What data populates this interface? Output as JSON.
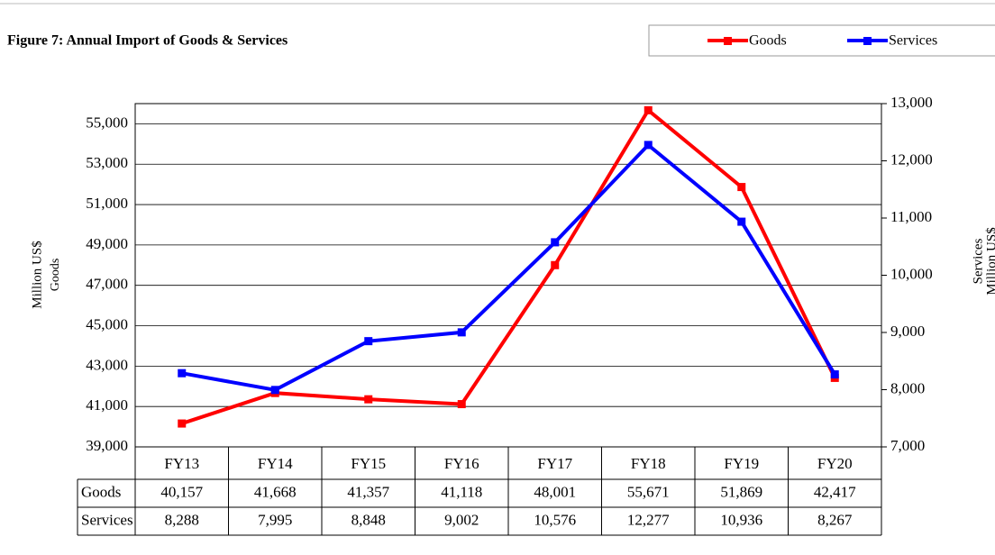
{
  "chart_data": {
    "type": "line",
    "title": "Figure 7: Annual Import of Goods & Services",
    "y_label": "Million US$",
    "y_sublabel": "Goods",
    "y2_label": "Services",
    "y2_sublabel": "Million US$",
    "categories": [
      "FY13",
      "FY14",
      "FY15",
      "FY16",
      "FY17",
      "FY18",
      "FY19",
      "FY20"
    ],
    "series": [
      {
        "name": "Goods",
        "color": "#ff0000",
        "values": [
          40157,
          41668,
          41357,
          41118,
          48001,
          55671,
          51869,
          42417
        ],
        "value_labels": [
          "40,157",
          "41,668",
          "41,357",
          "41,118",
          "48,001",
          "55,671",
          "51,869",
          "42,417"
        ]
      },
      {
        "name": "Services",
        "color": "#0000ff",
        "axis": "y2",
        "values": [
          8288,
          7995,
          8848,
          9002,
          10576,
          12277,
          10936,
          8267
        ],
        "value_labels": [
          "8,288",
          "7,995",
          "8,848",
          "9,002",
          "10,576",
          "12,277",
          "10,936",
          "8,267"
        ]
      }
    ],
    "ylim": [
      39000,
      56000
    ],
    "yticks": [
      {
        "value": 39000,
        "label": "39,000"
      },
      {
        "value": 41000,
        "label": "41,000"
      },
      {
        "value": 43000,
        "label": "43,000"
      },
      {
        "value": 45000,
        "label": "45,000"
      },
      {
        "value": 47000,
        "label": "47,000"
      },
      {
        "value": 49000,
        "label": "49,000"
      },
      {
        "value": 51000,
        "label": "51,000"
      },
      {
        "value": 53000,
        "label": "53,000"
      },
      {
        "value": 55000,
        "label": "55,000"
      }
    ],
    "y2lim": [
      7000,
      13000
    ],
    "y2ticks": [
      {
        "value": 7000,
        "label": "7,000"
      },
      {
        "value": 8000,
        "label": "8,000"
      },
      {
        "value": 9000,
        "label": "9,000"
      },
      {
        "value": 10000,
        "label": "10,000"
      },
      {
        "value": 11000,
        "label": "11,000"
      },
      {
        "value": 12000,
        "label": "12,000"
      },
      {
        "value": 13000,
        "label": "13,000"
      }
    ],
    "grid": true,
    "legend": "top-right"
  }
}
